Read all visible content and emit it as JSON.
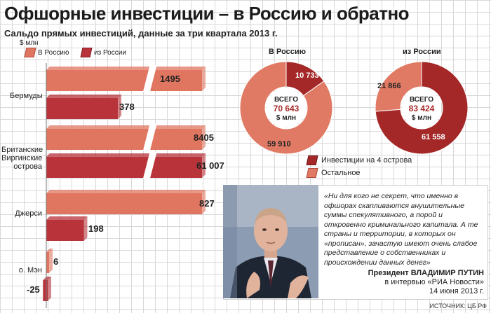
{
  "title": "Офшорные инвестиции – в Россию и обратно",
  "subtitle": "Сальдо прямых инвестиций, данные за три квартала 2013 г.",
  "unit": "$ млн",
  "colors": {
    "in": "#e07560",
    "out": "#b8333a",
    "offshore": "#a42828",
    "other": "#e07a64"
  },
  "chart_data": [
    {
      "type": "bar",
      "categories": [
        "Бермуды",
        "Британские Виргинские острова",
        "Джерси",
        "о. Мэн"
      ],
      "series": [
        {
          "name": "В Россию",
          "values": [
            1495,
            8405,
            827,
            6
          ]
        },
        {
          "name": "из России",
          "values": [
            378,
            61007,
            198,
            -25
          ]
        }
      ],
      "value_labels": {
        "in": [
          "1495",
          "8405",
          "827",
          "6"
        ],
        "out": [
          "378",
          "61 007",
          "198",
          "-25"
        ]
      },
      "ylabel": "$ млн"
    },
    {
      "type": "pie",
      "title": "В Россию",
      "center_top": "ВСЕГО",
      "total": "70 643",
      "center_unit": "$ млн",
      "slices": [
        {
          "name": "Инвестиции на 4 острова",
          "value": 10733,
          "label": "10 733"
        },
        {
          "name": "Остальное",
          "value": 59910,
          "label": "59 910"
        }
      ]
    },
    {
      "type": "pie",
      "title": "из России",
      "center_top": "ВСЕГО",
      "total": "83 424",
      "center_unit": "$ млн",
      "slices": [
        {
          "name": "Инвестиции на 4 острова",
          "value": 61558,
          "label": "61 558"
        },
        {
          "name": "Остальное",
          "value": 21866,
          "label": "21 866"
        }
      ]
    }
  ],
  "legend": {
    "in": "В Россию",
    "out": "из России"
  },
  "categories_display": [
    "Бермуды",
    "Британские\nВиргинские\nострова",
    "Джерси",
    "о. Мэн"
  ],
  "donut_legend": {
    "offshore": "Инвестиции на 4 острова",
    "other": "Остальное"
  },
  "quote": "«Ни для кого не секрет, что именно в офшорах скапливаются внушительные суммы спекулятивного, а порой и откровенно криминального капитала. А те страны и территории, в которых он «прописан», зачастую имеют очень слабое представление о собственниках и происхождении данных денег»",
  "attribution": {
    "name": "Президент ВЛАДИМИР ПУТИН",
    "source_line": "в интервью «РИА Новости»",
    "date": "14 июня 2013 г."
  },
  "source": "ИСТОЧНИК: ЦБ РФ"
}
